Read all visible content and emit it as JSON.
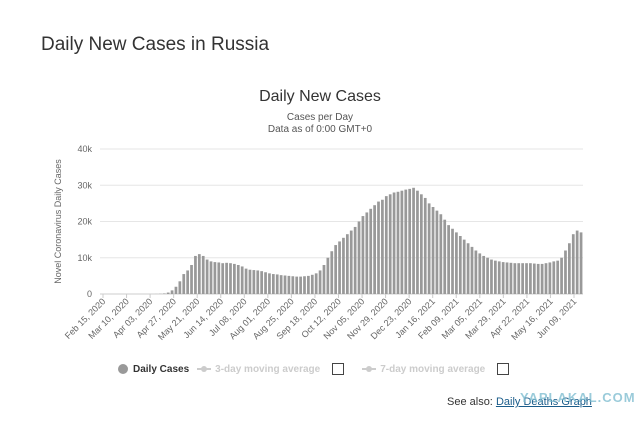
{
  "page": {
    "title": "Daily New Cases in Russia"
  },
  "see_also": {
    "prefix": "See also:",
    "link": "Daily Deaths Graph"
  },
  "watermark": "YAPLAKAL.COM",
  "legend": {
    "items": [
      {
        "label": "Daily Cases",
        "active": true
      },
      {
        "label": "3-day moving average",
        "active": false
      },
      {
        "label": "7-day moving average",
        "active": false
      }
    ]
  },
  "chart_data": {
    "type": "bar",
    "title": "Daily New Cases",
    "subtitle": "Cases per Day",
    "subtitle2": "Data as of 0:00 GMT+0",
    "ylabel": "Novel Coronavirus Daily Cases",
    "xlabel": "",
    "ylim": [
      0,
      40000
    ],
    "yticks": [
      "0",
      "10k",
      "20k",
      "30k",
      "40k"
    ],
    "yticks_values": [
      0,
      10000,
      20000,
      30000,
      40000
    ],
    "x_tick_labels": [
      "Feb 15, 2020",
      "Mar 10, 2020",
      "Apr 03, 2020",
      "Apr 27, 2020",
      "May 21, 2020",
      "Jun 14, 2020",
      "Jul 08, 2020",
      "Aug 01, 2020",
      "Aug 25, 2020",
      "Sep 18, 2020",
      "Oct 12, 2020",
      "Nov 05, 2020",
      "Nov 29, 2020",
      "Dec 23, 2020",
      "Jan 16, 2021",
      "Feb 09, 2021",
      "Mar 05, 2021",
      "Mar 29, 2021",
      "Apr 22, 2021",
      "May 16, 2021",
      "Jun 09, 2021"
    ],
    "grid": true,
    "legend_position": "bottom",
    "color": "#999999",
    "series": [
      {
        "name": "Daily Cases",
        "x_start": "Feb 15, 2020",
        "x_end": "Jun 19, 2021",
        "step_days": 3,
        "values": [
          0,
          0,
          0,
          0,
          0,
          0,
          0,
          0,
          0,
          0,
          0,
          0,
          0,
          0,
          10,
          50,
          150,
          400,
          1000,
          2000,
          3500,
          5500,
          6500,
          8000,
          10500,
          11000,
          10500,
          9500,
          9000,
          8800,
          8700,
          8500,
          8600,
          8500,
          8300,
          8000,
          7600,
          7000,
          6700,
          6600,
          6500,
          6300,
          6000,
          5700,
          5500,
          5400,
          5200,
          5100,
          5000,
          4900,
          4800,
          4800,
          4900,
          5000,
          5300,
          5700,
          6500,
          8000,
          10000,
          11800,
          13500,
          14500,
          15500,
          16500,
          17500,
          18500,
          20000,
          21500,
          22500,
          23500,
          24500,
          25500,
          26000,
          27000,
          27500,
          28000,
          28200,
          28500,
          28800,
          29000,
          29300,
          28500,
          27500,
          26500,
          25000,
          24000,
          23000,
          22000,
          20500,
          19000,
          18000,
          17000,
          16000,
          15000,
          14000,
          13000,
          12000,
          11200,
          10500,
          10000,
          9500,
          9200,
          9000,
          8800,
          8700,
          8600,
          8500,
          8500,
          8500,
          8500,
          8500,
          8400,
          8300,
          8300,
          8500,
          8700,
          9000,
          9200,
          10000,
          12000,
          14000,
          16500,
          17500,
          17000
        ]
      }
    ]
  }
}
